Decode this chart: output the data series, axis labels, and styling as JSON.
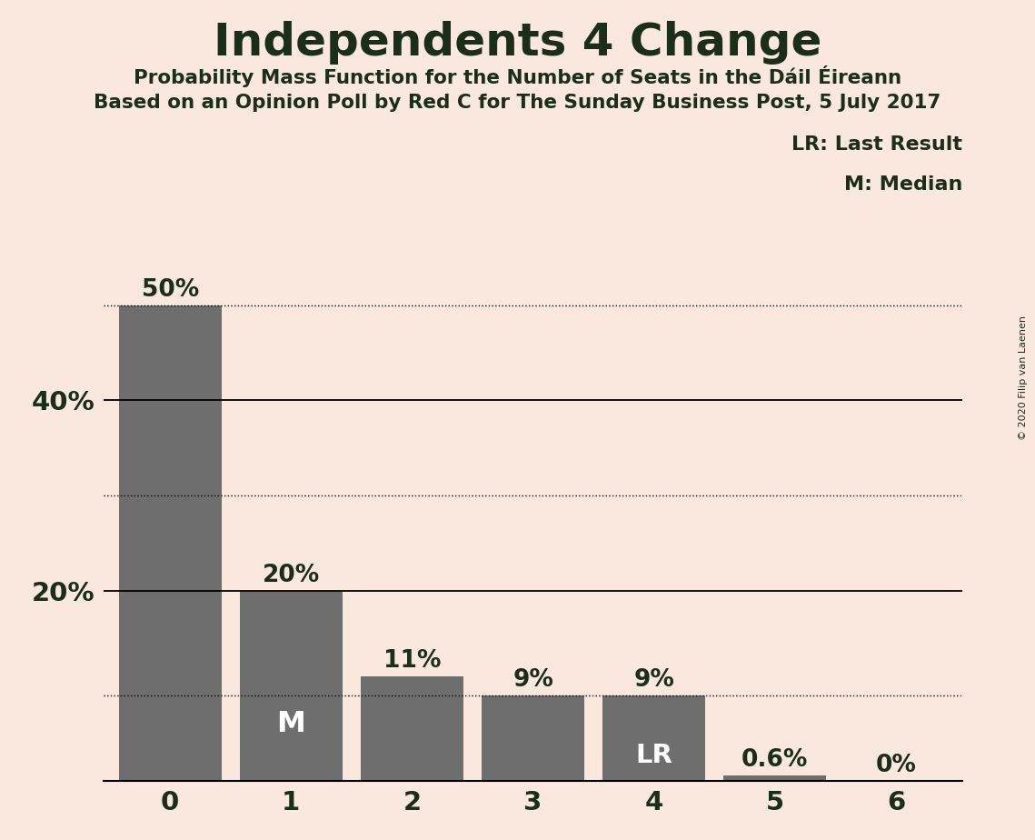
{
  "title": "Independents 4 Change",
  "subtitle1": "Probability Mass Function for the Number of Seats in the Dáil Éireann",
  "subtitle2": "Based on an Opinion Poll by Red C for The Sunday Business Post, 5 July 2017",
  "copyright": "© 2020 Filip van Laenen",
  "categories": [
    0,
    1,
    2,
    3,
    4,
    5,
    6
  ],
  "values": [
    0.5,
    0.2,
    0.11,
    0.09,
    0.09,
    0.006,
    0.0
  ],
  "bar_labels": [
    "50%",
    "20%",
    "11%",
    "9%",
    "9%",
    "0.6%",
    "0%"
  ],
  "bar_color": "#6e6e6e",
  "background_color": "#fae8df",
  "text_color": "#1a2e1a",
  "median_bar_index": 1,
  "lr_bar_index": 4,
  "solid_lines": [
    0.4,
    0.2
  ],
  "dotted_lines": [
    0.5,
    0.3,
    0.09
  ],
  "ylim": [
    0,
    0.6
  ],
  "yticks": [
    0.2,
    0.4
  ],
  "ytick_labels": [
    "20%",
    "40%"
  ],
  "title_fontsize": 36,
  "subtitle_fontsize": 15.5,
  "legend_fontsize": 16,
  "bar_label_fontsize": 19,
  "axis_tick_fontsize": 21,
  "m_label_fontsize": 23,
  "lr_label_fontsize": 21
}
